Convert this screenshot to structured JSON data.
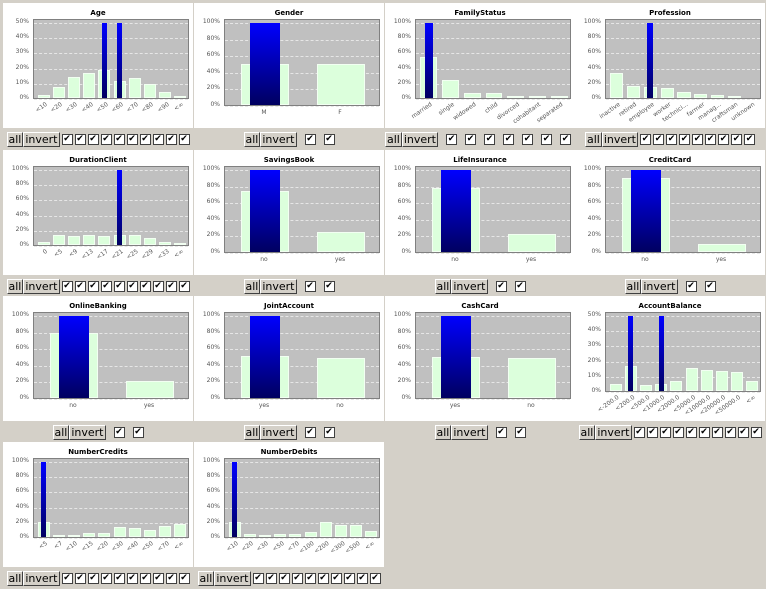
{
  "colors": {
    "window_bg": "#d4d0c8",
    "panel_bg": "#ffffff",
    "plot_bg": "#c0c0c0",
    "bar_base": "#dcffdc",
    "bar_selected_top": "#0000ff",
    "bar_selected_bottom": "#000060"
  },
  "controls": {
    "all_label": "all",
    "invert_label": "invert",
    "check_glyph": "✔"
  },
  "charts": [
    {
      "title": "Age",
      "yticks": [
        "50%",
        "40%",
        "30%",
        "20%",
        "10%",
        "0%"
      ],
      "ymax": 50,
      "categories": [
        "<10",
        "<20",
        "<30",
        "<40",
        "<50",
        "<60",
        "<70",
        "<80",
        "<90",
        "<∞"
      ],
      "values": [
        2,
        7.5,
        14,
        17,
        19,
        11.5,
        13.5,
        9.5,
        4,
        1
      ],
      "selected": [
        0,
        0,
        0,
        0,
        50,
        50,
        0,
        0,
        0,
        0
      ],
      "rotated": true
    },
    {
      "title": "Gender",
      "yticks": [
        "100%",
        "80%",
        "60%",
        "40%",
        "20%",
        "0%"
      ],
      "ymax": 100,
      "categories": [
        "M",
        "F"
      ],
      "values": [
        50,
        50
      ],
      "selected": [
        100,
        0
      ],
      "rotated": false
    },
    {
      "title": "FamilyStatus",
      "yticks": [
        "100%",
        "80%",
        "60%",
        "40%",
        "20%",
        "0%"
      ],
      "ymax": 100,
      "categories": [
        "married",
        "single",
        "widowed",
        "child",
        "divorced",
        "cohabitant",
        "separated"
      ],
      "values": [
        55,
        24,
        7,
        7,
        3,
        2,
        1
      ],
      "selected": [
        100,
        0,
        0,
        0,
        0,
        0,
        0
      ],
      "rotated": true
    },
    {
      "title": "Profession",
      "yticks": [
        "100%",
        "80%",
        "60%",
        "40%",
        "20%",
        "0%"
      ],
      "ymax": 100,
      "categories": [
        "inactive",
        "retired",
        "employee",
        "worker",
        "technici...",
        "farmer",
        "manag...",
        "craftsman",
        "unknown"
      ],
      "values": [
        33,
        16.5,
        15,
        13,
        7.5,
        5,
        4,
        3,
        0
      ],
      "selected": [
        0,
        0,
        100,
        0,
        0,
        0,
        0,
        0,
        0
      ],
      "rotated": true
    },
    {
      "title": "DurationClient",
      "yticks": [
        "100%",
        "80%",
        "60%",
        "40%",
        "20%",
        "0%"
      ],
      "ymax": 100,
      "categories": [
        "0",
        "<5",
        "<9",
        "<13",
        "<17",
        "<21",
        "<25",
        "<29",
        "<33",
        "<∞"
      ],
      "values": [
        3.5,
        14,
        12.5,
        14,
        12.5,
        13.5,
        13.5,
        9,
        3.5,
        2
      ],
      "selected": [
        0,
        0,
        0,
        0,
        0,
        100,
        0,
        0,
        0,
        0
      ],
      "rotated": true
    },
    {
      "title": "SavingsBook",
      "yticks": [
        "100%",
        "80%",
        "60%",
        "40%",
        "20%",
        "0%"
      ],
      "ymax": 100,
      "categories": [
        "no",
        "yes"
      ],
      "values": [
        75,
        25
      ],
      "selected": [
        100,
        0
      ],
      "rotated": false
    },
    {
      "title": "LifeInsurance",
      "yticks": [
        "100%",
        "80%",
        "60%",
        "40%",
        "20%",
        "0%"
      ],
      "ymax": 100,
      "categories": [
        "no",
        "yes"
      ],
      "values": [
        78,
        22
      ],
      "selected": [
        100,
        0
      ],
      "rotated": false
    },
    {
      "title": "CreditCard",
      "yticks": [
        "100%",
        "80%",
        "60%",
        "40%",
        "20%",
        "0%"
      ],
      "ymax": 100,
      "categories": [
        "no",
        "yes"
      ],
      "values": [
        90,
        10
      ],
      "selected": [
        100,
        0
      ],
      "rotated": false
    },
    {
      "title": "OnlineBanking",
      "yticks": [
        "100%",
        "80%",
        "60%",
        "40%",
        "20%",
        "0%"
      ],
      "ymax": 100,
      "categories": [
        "no",
        "yes"
      ],
      "values": [
        79,
        21
      ],
      "selected": [
        100,
        0
      ],
      "rotated": false
    },
    {
      "title": "JointAccount",
      "yticks": [
        "100%",
        "80%",
        "60%",
        "40%",
        "20%",
        "0%"
      ],
      "ymax": 100,
      "categories": [
        "yes",
        "no"
      ],
      "values": [
        51,
        49
      ],
      "selected": [
        100,
        0
      ],
      "rotated": false
    },
    {
      "title": "CashCard",
      "yticks": [
        "100%",
        "80%",
        "60%",
        "40%",
        "20%",
        "0%"
      ],
      "ymax": 100,
      "categories": [
        "yes",
        "no"
      ],
      "values": [
        50,
        49
      ],
      "selected": [
        100,
        0
      ],
      "rotated": false
    },
    {
      "title": "AccountBalance",
      "yticks": [
        "50%",
        "40%",
        "30%",
        "20%",
        "10%",
        "0%"
      ],
      "ymax": 50,
      "categories": [
        "<-200.0",
        "<200.0",
        "<500.0",
        "<1000.0",
        "<2000.0",
        "<5000.0",
        "<10000.0",
        "<20000.0",
        "<50000.0",
        "<∞"
      ],
      "values": [
        4.5,
        16.5,
        4,
        5,
        7,
        15.5,
        14,
        13.5,
        13,
        6.5
      ],
      "selected": [
        0,
        50,
        0,
        50,
        0,
        0,
        0,
        0,
        0,
        0
      ],
      "rotated": true
    },
    {
      "title": "NumberCredits",
      "yticks": [
        "100%",
        "80%",
        "60%",
        "40%",
        "20%",
        "0%"
      ],
      "ymax": 100,
      "categories": [
        "<5",
        "<7",
        "<10",
        "<15",
        "<20",
        "<30",
        "<40",
        "<50",
        "<70",
        "<∞"
      ],
      "values": [
        20,
        2,
        3,
        6,
        6,
        13,
        11.5,
        10,
        15,
        17
      ],
      "selected": [
        100,
        0,
        0,
        0,
        0,
        0,
        0,
        0,
        0,
        0
      ],
      "rotated": true
    },
    {
      "title": "NumberDebits",
      "yticks": [
        "100%",
        "80%",
        "60%",
        "40%",
        "20%",
        "0%"
      ],
      "ymax": 100,
      "categories": [
        "<10",
        "<20",
        "<30",
        "<50",
        "<70",
        "<100",
        "<200",
        "<300",
        "<500",
        "<∞"
      ],
      "values": [
        20.5,
        4,
        3,
        4.5,
        4.5,
        6.5,
        19.5,
        15.5,
        16,
        8.5
      ],
      "selected": [
        100,
        0,
        0,
        0,
        0,
        0,
        0,
        0,
        0,
        0
      ],
      "rotated": true
    }
  ]
}
